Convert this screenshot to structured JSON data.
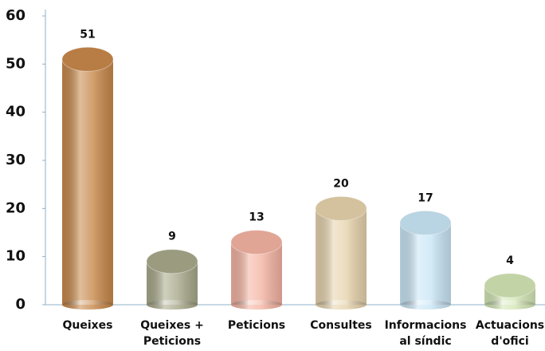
{
  "chart_data": {
    "type": "bar",
    "categories": [
      "Queixes",
      "Queixes + Peticions",
      "Peticions",
      "Consultes",
      "Informacions al síndic",
      "Actuacions d'ofici"
    ],
    "values": [
      51,
      9,
      13,
      20,
      17,
      4
    ],
    "colors": [
      "#c8884a",
      "#a9a98b",
      "#f4b3a2",
      "#e6d3ac",
      "#c9e6f6",
      "#d3e6b5"
    ],
    "ylim": [
      0,
      60
    ],
    "yticks": [
      0,
      10,
      20,
      30,
      40,
      50,
      60
    ]
  }
}
